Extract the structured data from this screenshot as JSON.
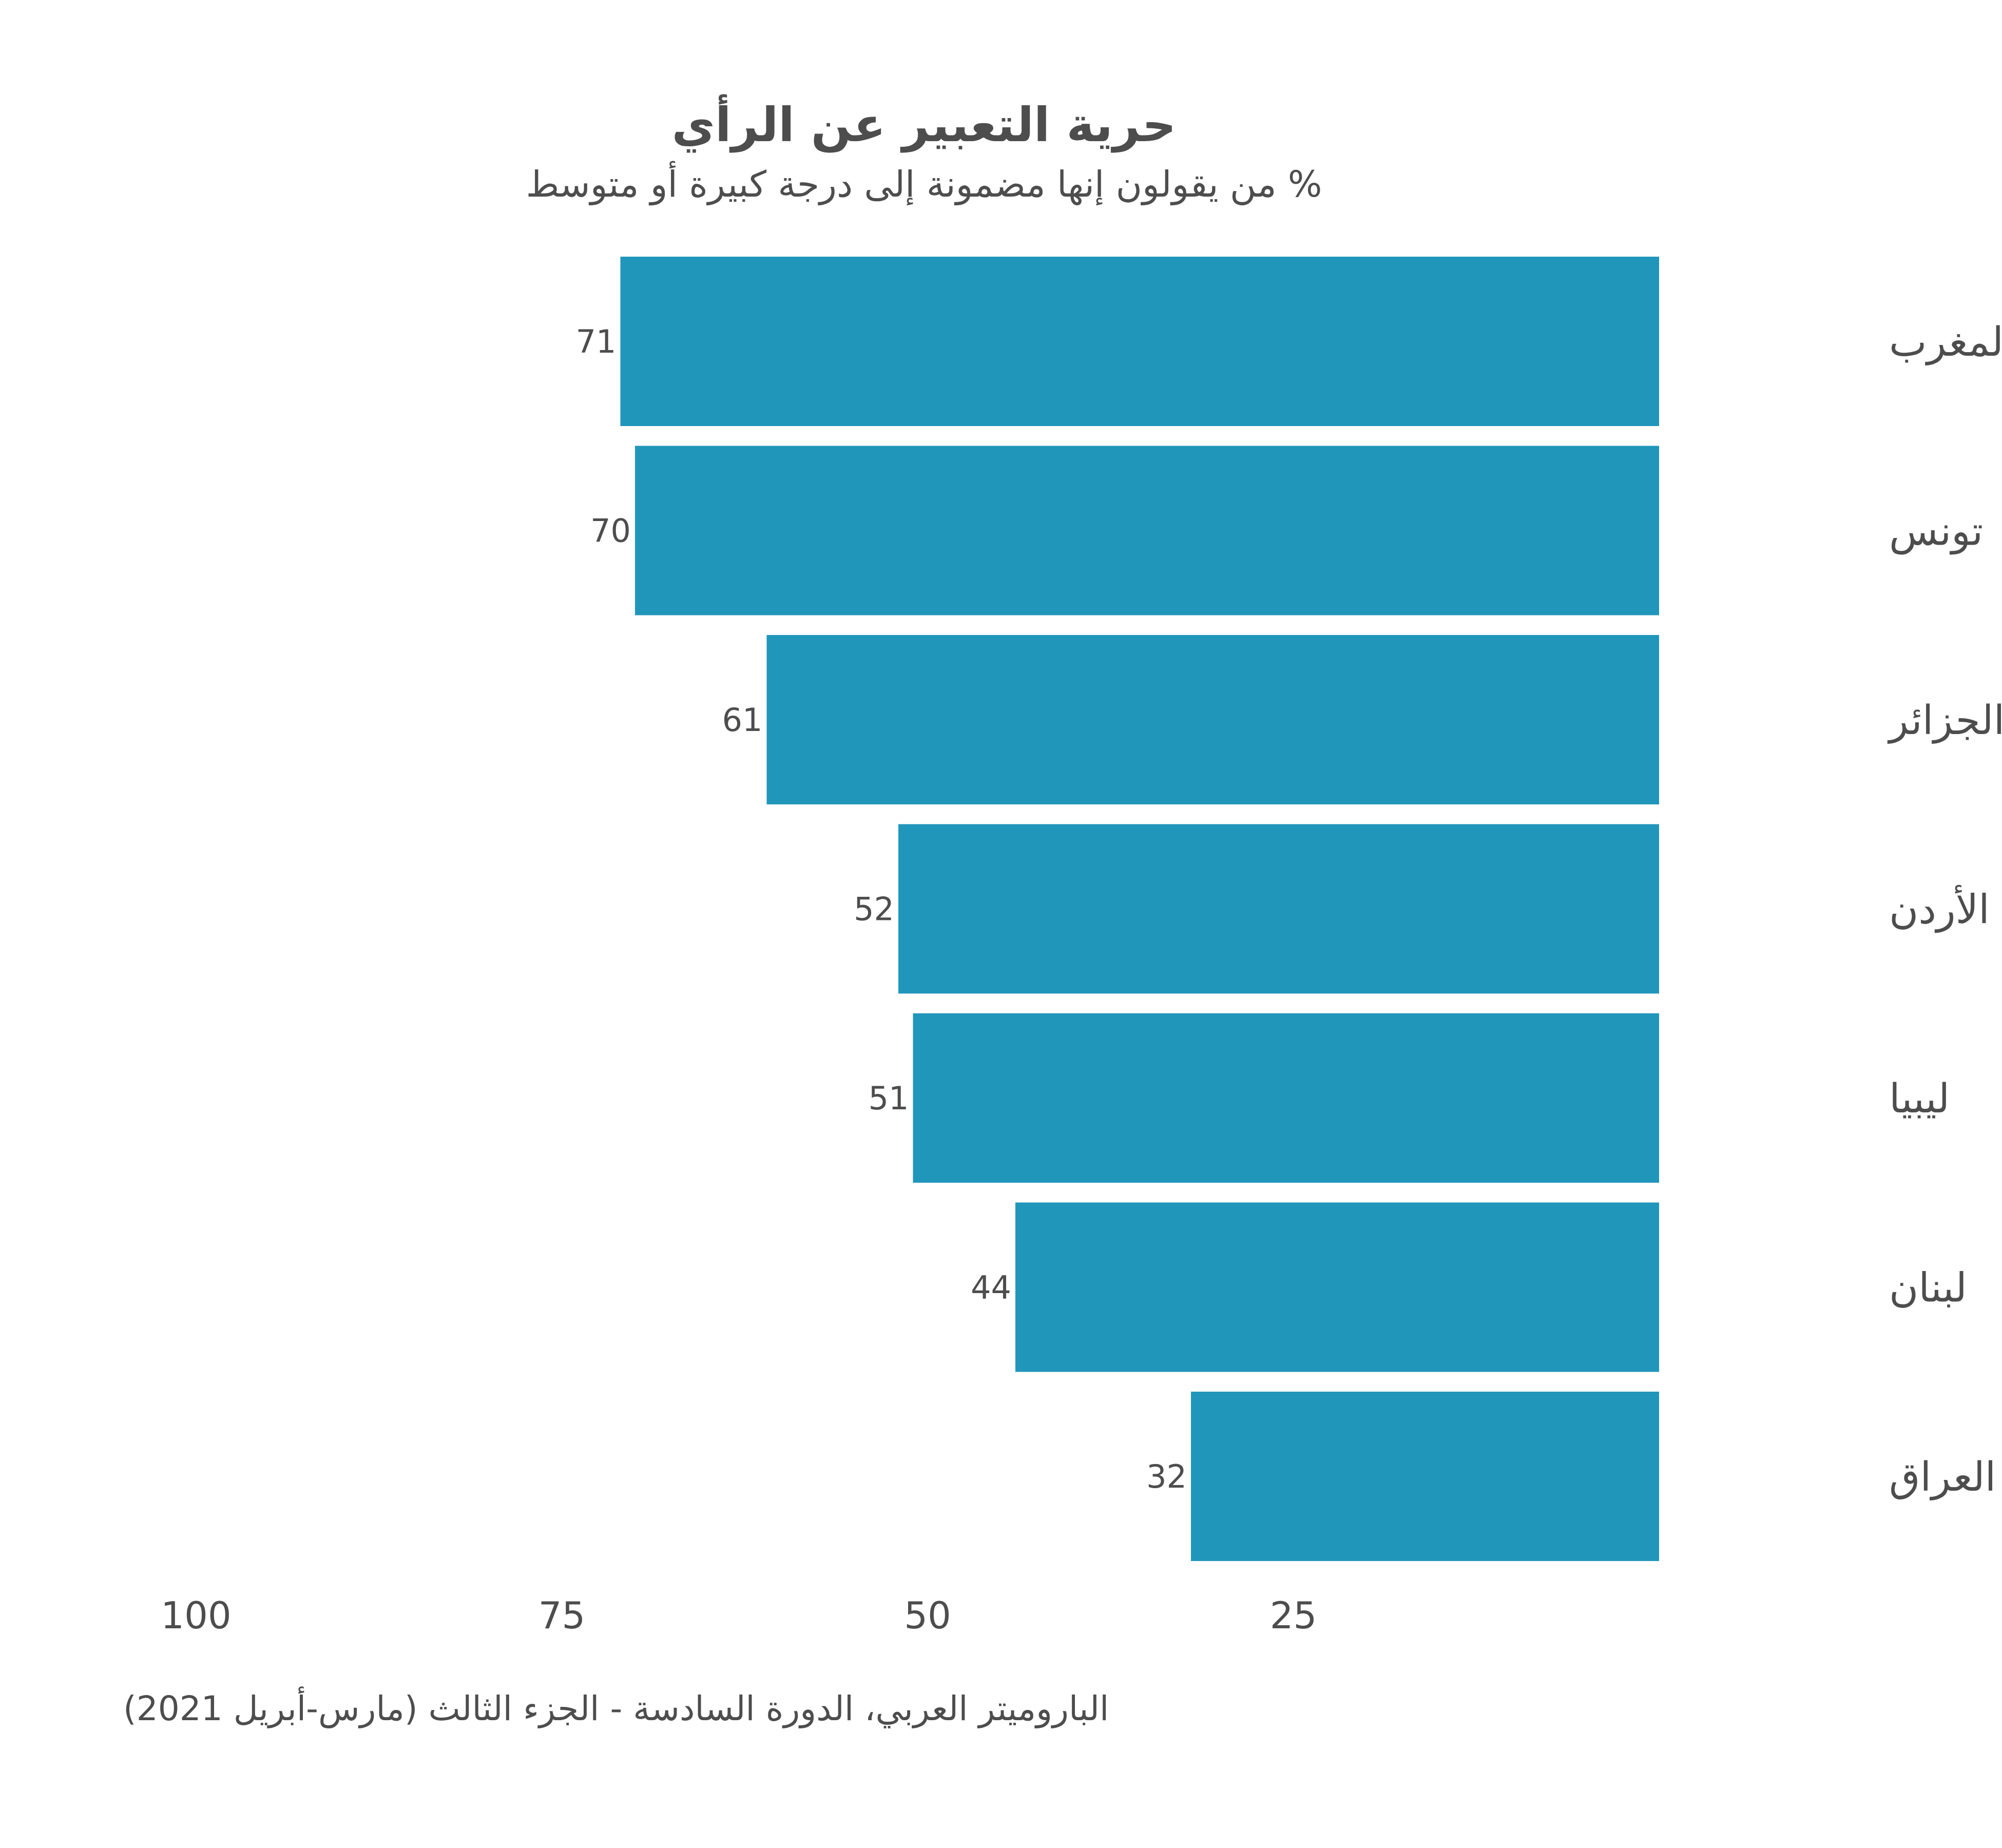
{
  "chart_data": {
    "type": "bar",
    "orientation": "horizontal",
    "title": "حرية التعبير عن الرأي",
    "subtitle": "% من يقولون إنها مضمونة إلى درجة كبيرة أو متوسط",
    "categories": [
      "المغرب",
      "تونس",
      "الجزائر",
      "الأردن",
      "ليبيا",
      "لبنان",
      "العراق"
    ],
    "values": [
      71,
      70,
      61,
      52,
      51,
      44,
      32
    ],
    "data_labels": [
      "71",
      "70",
      "61",
      "52",
      "51",
      "44",
      "32"
    ],
    "x_ticks": [
      "100",
      "75",
      "50",
      "25"
    ],
    "x_tick_values": [
      100,
      75,
      50,
      25
    ],
    "xlim": [
      0,
      100
    ],
    "x_reversed": true,
    "grid": false,
    "bar_color": "#2196bb",
    "source": "الباروميتر العربي، الدورة السادسة - الجزء الثالث (مارس-أبريل 2021)"
  }
}
